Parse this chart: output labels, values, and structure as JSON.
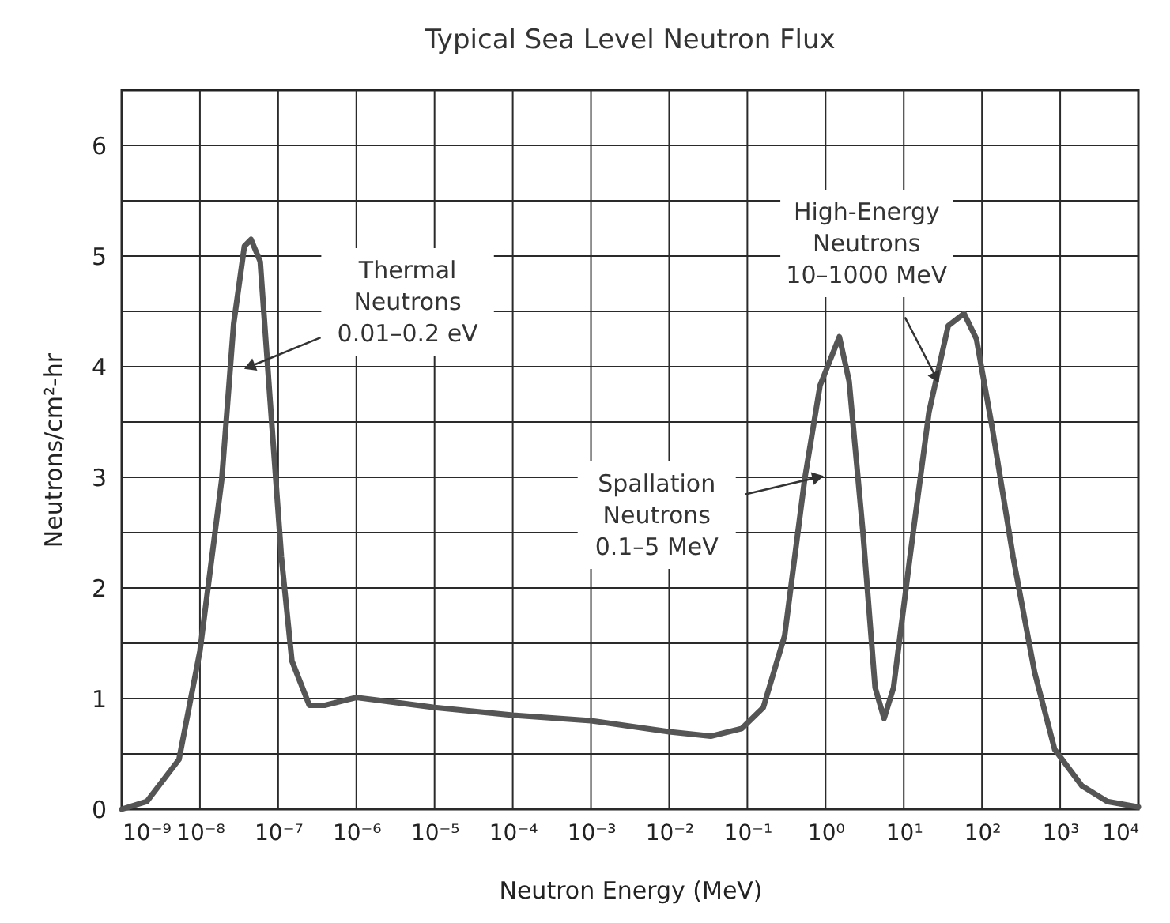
{
  "chart_data": {
    "type": "line",
    "title": "Typical Sea Level Neutron Flux",
    "xlabel": "Neutron Energy (MeV)",
    "ylabel": "Neutrons/cm²-hr",
    "x": [
      1e-09,
      2.1e-09,
      5.4e-09,
      1e-08,
      1.9e-08,
      2.7e-08,
      3.7e-08,
      4.5e-08,
      5.9e-08,
      7.9e-08,
      1.1e-07,
      1.5e-07,
      2.5e-07,
      4e-07,
      1e-06,
      1e-05,
      0.0001,
      0.001,
      0.01,
      0.034,
      0.085,
      0.16,
      0.3,
      0.54,
      0.85,
      1.5,
      2.0,
      3.0,
      4.3,
      5.6,
      7.4,
      12,
      21,
      37,
      59,
      85,
      135,
      250,
      470,
      850,
      1900,
      4000,
      10000
    ],
    "values": [
      0,
      0.07,
      0.45,
      1.43,
      2.98,
      4.39,
      5.09,
      5.15,
      4.95,
      3.69,
      2.28,
      1.34,
      0.94,
      0.94,
      1.01,
      0.92,
      0.85,
      0.8,
      0.7,
      0.66,
      0.73,
      0.92,
      1.57,
      2.98,
      3.83,
      4.27,
      3.87,
      2.51,
      1.1,
      0.82,
      1.1,
      2.28,
      3.59,
      4.37,
      4.48,
      4.25,
      3.45,
      2.28,
      1.24,
      0.54,
      0.21,
      0.07,
      0.02
    ],
    "color": "#555555",
    "log": "x",
    "grid": true,
    "marker": "none",
    "xlim": [
      1e-09,
      10000
    ],
    "xticks": [
      {
        "value": 1e-09,
        "label": "10⁻⁹"
      },
      {
        "value": 1e-08,
        "label": "10⁻⁸"
      },
      {
        "value": 1e-07,
        "label": "10⁻⁷"
      },
      {
        "value": 1e-06,
        "label": "10⁻⁶"
      },
      {
        "value": 1e-05,
        "label": "10⁻⁵"
      },
      {
        "value": 0.0001,
        "label": "10⁻⁴"
      },
      {
        "value": 0.001,
        "label": "10⁻³"
      },
      {
        "value": 0.01,
        "label": "10⁻²"
      },
      {
        "value": 0.1,
        "label": "10⁻¹"
      },
      {
        "value": 1,
        "label": "10⁰"
      },
      {
        "value": 10,
        "label": "10¹"
      },
      {
        "value": 100,
        "label": "10²"
      },
      {
        "value": 1000,
        "label": "10³"
      },
      {
        "value": 10000,
        "label": "10⁴"
      }
    ],
    "ylim": [
      0,
      6.5
    ],
    "yticks": [
      0,
      {
        "value": 0.5,
        "label": null
      },
      1,
      {
        "value": 1.5,
        "label": null
      },
      2,
      {
        "value": 2.5,
        "label": null
      },
      3,
      {
        "value": 3.5,
        "label": null
      },
      4,
      {
        "value": 4.5,
        "label": null
      },
      5,
      {
        "value": 5.5,
        "label": null
      },
      6
    ],
    "annotations": [
      {
        "text": "Thermal\nNeutrons\n0.01–0.2 eV",
        "x": 4.3e-08,
        "y": 4.0
      },
      {
        "text": "Spallation\nNeutrons\n0.1–5 MeV",
        "x": 0.8,
        "y": 3.0
      },
      {
        "text": "High-Energy\nNeutrons\n10–1000 MeV",
        "x": 26,
        "y": 3.9
      }
    ]
  }
}
